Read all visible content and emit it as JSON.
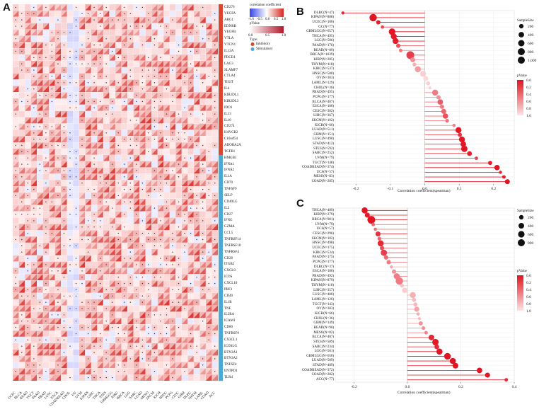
{
  "panels": {
    "a": "A",
    "b": "B",
    "c": "C"
  },
  "heatmap": {
    "legend": {
      "corr_title": "correlation coefficient",
      "corr_ticks": [
        "-1.0",
        "-0.5",
        "0.0",
        "0.5",
        "1.0"
      ],
      "p_title": "pValue",
      "p_ticks": [
        "0.0",
        "0.5",
        "1.0"
      ],
      "type_title": "Type:",
      "type_items": [
        {
          "label": "Inhibitory",
          "color": "#d9452d"
        },
        {
          "label": "Stimulatory",
          "color": "#4aaad3"
        }
      ]
    },
    "genes": [
      "CD276",
      "VEGFA",
      "ARG1",
      "EDNRB",
      "VEGFB",
      "VTLA",
      "VTCN1",
      "IL12A",
      "PDCD1",
      "LAG3",
      "SLAMF7",
      "CTLA4",
      "TIGIT",
      "IL4",
      "KIR2DL1",
      "KIR2DL3",
      "IDO1",
      "IL13",
      "IL10",
      "CD274",
      "HAVCR2",
      "C10orf54",
      "ADORA2A",
      "TGFB1",
      "HMGB1",
      "IFNA1",
      "IFNA2",
      "IL1A",
      "CD70",
      "TNFSF9",
      "SELP",
      "CD40LG",
      "IL2",
      "CD27",
      "IFNG",
      "GZMA",
      "CCL5",
      "TNFRSF14",
      "TNFRSF18",
      "TNFRSF4",
      "CD28",
      "ITGB2",
      "CXCL9",
      "ICOS",
      "CXCL10",
      "PRF1",
      "CD40",
      "IL1B",
      "TNF",
      "IL2RA",
      "ICAM1",
      "CD80",
      "TNFRSF9",
      "CX3CL1",
      "ICOSLG",
      "BTN3A1",
      "BTN3A2",
      "TNFSF4",
      "ENTPD1",
      "TLR4"
    ],
    "gene_types": [
      1,
      1,
      1,
      1,
      1,
      1,
      1,
      1,
      1,
      1,
      1,
      1,
      1,
      1,
      1,
      1,
      1,
      1,
      1,
      1,
      1,
      1,
      1,
      1,
      2,
      2,
      2,
      2,
      2,
      2,
      2,
      2,
      2,
      2,
      2,
      2,
      2,
      2,
      2,
      2,
      2,
      2,
      2,
      2,
      2,
      2,
      2,
      2,
      2,
      2,
      2,
      2,
      2,
      2,
      2,
      2,
      2,
      2,
      2,
      2
    ],
    "cancers": [
      "UCEC",
      "BLCA",
      "READ",
      "TGCT",
      "PAAD",
      "PRAD",
      "LUSC",
      "ESCA",
      "COADREAD",
      "CHOL",
      "OV",
      "UVM",
      "KIPAN",
      "LIHC",
      "THCA",
      "STES",
      "GBMLGG",
      "KIRC",
      "BRCA",
      "LGG",
      "SARC",
      "LUAD",
      "MESO",
      "SKCM",
      "KICH",
      "HNSC",
      "PCPG",
      "CESC",
      "GBM",
      "DLBC",
      "THYM",
      "LAML",
      "COAD",
      "ACC"
    ]
  },
  "chart_b": {
    "type": "lollipop",
    "xlabel": "Correlation coefficient(spearman)",
    "xticks": [
      "-0.2",
      "-0.1",
      "0.0",
      "0.1",
      "0.2"
    ],
    "xlim": [
      -0.26,
      0.26
    ],
    "size_legend": {
      "title": "SampleSize",
      "labels": [
        "200",
        "400",
        "600",
        "800",
        "1,000"
      ]
    },
    "p_legend": {
      "title": "pValue",
      "labels": [
        "0.0",
        "0.2",
        "0.4",
        "0.6",
        "0.8",
        "1.0"
      ]
    },
    "rows": [
      {
        "label": "DLBC(N=47)",
        "value": -0.238,
        "p": 0.1,
        "n": 47
      },
      {
        "label": "KIPAN(N=888)",
        "value": -0.15,
        "p": 0.0,
        "n": 888
      },
      {
        "label": "UCEC(N=180)",
        "value": -0.135,
        "p": 0.05,
        "n": 180
      },
      {
        "label": "GC(N=77)",
        "value": -0.123,
        "p": 0.25,
        "n": 77
      },
      {
        "label": "GBMLGG(N=657)",
        "value": -0.095,
        "p": 0.02,
        "n": 657
      },
      {
        "label": "THCA(N=495)",
        "value": -0.09,
        "p": 0.03,
        "n": 495
      },
      {
        "label": "LGG(N=506)",
        "value": -0.085,
        "p": 0.05,
        "n": 506
      },
      {
        "label": "PAAD(N=176)",
        "value": -0.077,
        "p": 0.3,
        "n": 176
      },
      {
        "label": "READ(N=89)",
        "value": -0.07,
        "p": 0.5,
        "n": 89
      },
      {
        "label": "BRCA(N=1039)",
        "value": -0.042,
        "p": 0.2,
        "n": 1039
      },
      {
        "label": "KIRP(N=285)",
        "value": -0.035,
        "p": 0.6,
        "n": 285
      },
      {
        "label": "THYM(N=118)",
        "value": -0.03,
        "p": 0.75,
        "n": 118
      },
      {
        "label": "KIRC(N=537)",
        "value": -0.02,
        "p": 0.65,
        "n": 537
      },
      {
        "label": "HNSC(N=500)",
        "value": -0.005,
        "p": 0.9,
        "n": 500
      },
      {
        "label": "OV(N=303)",
        "value": 0.003,
        "p": 0.95,
        "n": 303
      },
      {
        "label": "LAML(N=129)",
        "value": 0.01,
        "p": 0.9,
        "n": 129
      },
      {
        "label": "CHOL(N=36)",
        "value": 0.015,
        "p": 0.92,
        "n": 36
      },
      {
        "label": "PRAD(N=495)",
        "value": 0.03,
        "p": 0.5,
        "n": 495
      },
      {
        "label": "PCPG(N=177)",
        "value": 0.04,
        "p": 0.6,
        "n": 177
      },
      {
        "label": "BLCA(N=407)",
        "value": 0.045,
        "p": 0.35,
        "n": 407
      },
      {
        "label": "ESCA(N=180)",
        "value": 0.05,
        "p": 0.5,
        "n": 180
      },
      {
        "label": "CESC(N=302)",
        "value": 0.055,
        "p": 0.4,
        "n": 302
      },
      {
        "label": "LIHC(N=367)",
        "value": 0.06,
        "p": 0.3,
        "n": 367
      },
      {
        "label": "SKCM(N=102)",
        "value": 0.065,
        "p": 0.45,
        "n": 102
      },
      {
        "label": "KICH(N=66)",
        "value": 0.085,
        "p": 0.55,
        "n": 66
      },
      {
        "label": "LUAD(N=511)",
        "value": 0.098,
        "p": 0.02,
        "n": 511
      },
      {
        "label": "GBM(N=151)",
        "value": 0.102,
        "p": 0.15,
        "n": 151
      },
      {
        "label": "LUSC(N=490)",
        "value": 0.108,
        "p": 0.02,
        "n": 490
      },
      {
        "label": "STAD(N=412)",
        "value": 0.112,
        "p": 0.02,
        "n": 412
      },
      {
        "label": "STES(N=592)",
        "value": 0.115,
        "p": 0.01,
        "n": 592
      },
      {
        "label": "SARC(N=252)",
        "value": 0.13,
        "p": 0.05,
        "n": 252
      },
      {
        "label": "UVM(N=79)",
        "value": 0.15,
        "p": 0.25,
        "n": 79
      },
      {
        "label": "TGCT(N=148)",
        "value": 0.19,
        "p": 0.03,
        "n": 148
      },
      {
        "label": "COADREAD(N=374)",
        "value": 0.21,
        "p": 0.0,
        "n": 374
      },
      {
        "label": "UCS(N=57)",
        "value": 0.22,
        "p": 0.1,
        "n": 57
      },
      {
        "label": "MESO(N=83)",
        "value": 0.23,
        "p": 0.05,
        "n": 83
      },
      {
        "label": "COAD(N=285)",
        "value": 0.24,
        "p": 0.0,
        "n": 285
      }
    ]
  },
  "chart_c": {
    "type": "lollipop",
    "xlabel": "Correlation coefficient(spearman)",
    "xticks": [
      "-0.2",
      "0.0",
      "0.2",
      "0.4"
    ],
    "xlim": [
      -0.27,
      0.4
    ],
    "size_legend": {
      "title": "SampleSize",
      "labels": [
        "200",
        "400",
        "600",
        "800"
      ]
    },
    "p_legend": {
      "title": "pValue",
      "labels": [
        "0.0",
        "0.2",
        "0.4",
        "0.6",
        "0.8",
        "1.0"
      ]
    },
    "rows": [
      {
        "label": "THCA(N=489)",
        "value": -0.16,
        "p": 0.0,
        "n": 489
      },
      {
        "label": "KIRP(N=279)",
        "value": -0.15,
        "p": 0.05,
        "n": 279
      },
      {
        "label": "BRCA(N=981)",
        "value": -0.135,
        "p": 0.0,
        "n": 981
      },
      {
        "label": "UVM(N=79)",
        "value": -0.128,
        "p": 0.4,
        "n": 79
      },
      {
        "label": "UCS(N=57)",
        "value": -0.12,
        "p": 0.45,
        "n": 57
      },
      {
        "label": "CESC(N=296)",
        "value": -0.11,
        "p": 0.15,
        "n": 296
      },
      {
        "label": "SKCM(N=102)",
        "value": -0.105,
        "p": 0.4,
        "n": 102
      },
      {
        "label": "HNSC(N=498)",
        "value": -0.1,
        "p": 0.1,
        "n": 498
      },
      {
        "label": "UCEC(N=175)",
        "value": -0.095,
        "p": 0.3,
        "n": 175
      },
      {
        "label": "KIRC(N=534)",
        "value": -0.088,
        "p": 0.2,
        "n": 534
      },
      {
        "label": "PAAD(N=175)",
        "value": -0.08,
        "p": 0.4,
        "n": 175
      },
      {
        "label": "PCPG(N=177)",
        "value": -0.07,
        "p": 0.5,
        "n": 177
      },
      {
        "label": "DLBC(N=37)",
        "value": -0.06,
        "p": 0.7,
        "n": 37
      },
      {
        "label": "ESCA(N=180)",
        "value": -0.05,
        "p": 0.6,
        "n": 180
      },
      {
        "label": "PRAD(N=492)",
        "value": -0.04,
        "p": 0.5,
        "n": 492
      },
      {
        "label": "KIPAN(N=879)",
        "value": -0.03,
        "p": 0.5,
        "n": 879
      },
      {
        "label": "THYM(N=118)",
        "value": -0.02,
        "p": 0.85,
        "n": 118
      },
      {
        "label": "LIHC(N=357)",
        "value": -0.01,
        "p": 0.9,
        "n": 357
      },
      {
        "label": "LUSC(N=486)",
        "value": 0.02,
        "p": 0.75,
        "n": 486
      },
      {
        "label": "LAML(N=126)",
        "value": 0.025,
        "p": 0.8,
        "n": 126
      },
      {
        "label": "TGCT(N=143)",
        "value": 0.03,
        "p": 0.8,
        "n": 143
      },
      {
        "label": "OV(N=303)",
        "value": 0.035,
        "p": 0.7,
        "n": 303
      },
      {
        "label": "KICH(N=66)",
        "value": 0.04,
        "p": 0.75,
        "n": 66
      },
      {
        "label": "CHOL(N=36)",
        "value": 0.045,
        "p": 0.8,
        "n": 36
      },
      {
        "label": "GBM(N=149)",
        "value": 0.05,
        "p": 0.6,
        "n": 149
      },
      {
        "label": "READ(N=90)",
        "value": 0.06,
        "p": 0.6,
        "n": 90
      },
      {
        "label": "MESO(N=82)",
        "value": 0.07,
        "p": 0.55,
        "n": 82
      },
      {
        "label": "BLCA(N=407)",
        "value": 0.09,
        "p": 0.1,
        "n": 407
      },
      {
        "label": "STES(N=589)",
        "value": 0.105,
        "p": 0.02,
        "n": 589
      },
      {
        "label": "SARC(N=234)",
        "value": 0.11,
        "p": 0.1,
        "n": 234
      },
      {
        "label": "LGG(N=501)",
        "value": 0.12,
        "p": 0.01,
        "n": 501
      },
      {
        "label": "GBMLGG(N=650)",
        "value": 0.15,
        "p": 0.0,
        "n": 650
      },
      {
        "label": "LUAD(N=509)",
        "value": 0.17,
        "p": 0.0,
        "n": 509
      },
      {
        "label": "STAD(N=409)",
        "value": 0.18,
        "p": 0.01,
        "n": 409
      },
      {
        "label": "COADREAD(N=372)",
        "value": 0.27,
        "p": 0.0,
        "n": 372
      },
      {
        "label": "COAD(N=282)",
        "value": 0.3,
        "p": 0.0,
        "n": 282
      },
      {
        "label": "ACC(N=77)",
        "value": 0.37,
        "p": 0.1,
        "n": 77
      }
    ]
  }
}
